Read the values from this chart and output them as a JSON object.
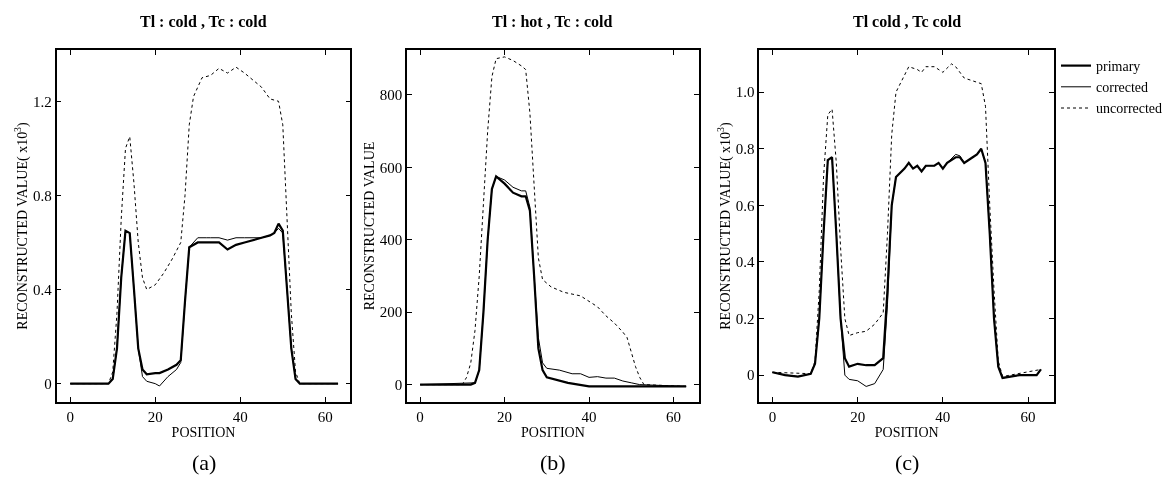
{
  "chart_data": [
    {
      "type": "line",
      "title": "Tl : cold , Tc : cold",
      "xlabel": "POSITION",
      "ylabel": "RECONSTRUCTED VALUE( x10$^{3}$)",
      "annotations": [
        "(a)"
      ],
      "xlim": [
        -3.2,
        65.9
      ],
      "ylim": [
        -0.078,
        1.418
      ],
      "xticks": [
        0,
        20,
        40,
        60
      ],
      "yticks": [
        0,
        0.4,
        0.8,
        1.2
      ],
      "series": [
        {
          "color": "#000000",
          "line_style": "solid",
          "x": [
            0,
            9,
            10,
            11,
            12,
            13,
            14,
            15,
            16,
            17,
            18,
            20,
            21,
            23,
            25,
            26,
            27,
            28,
            30,
            32,
            33,
            35,
            37,
            39,
            41,
            45,
            47,
            48,
            49,
            50,
            51,
            52,
            53,
            54,
            63
          ],
          "values": [
            0,
            0,
            0.02,
            0.15,
            0.45,
            0.65,
            0.64,
            0.4,
            0.15,
            0.06,
            0.04,
            0.045,
            0.045,
            0.06,
            0.08,
            0.1,
            0.35,
            0.58,
            0.6,
            0.6,
            0.6,
            0.6,
            0.57,
            0.59,
            0.6,
            0.62,
            0.63,
            0.64,
            0.68,
            0.65,
            0.4,
            0.15,
            0.02,
            0,
            0
          ]
        },
        {
          "color": "#000000",
          "line_style": "solid",
          "x": [
            0,
            9,
            10,
            11,
            12,
            13,
            14,
            15,
            16,
            17,
            18,
            20,
            21,
            23,
            25,
            26,
            27,
            28,
            30,
            32,
            33,
            35,
            37,
            39,
            41,
            45,
            47,
            48,
            49,
            50,
            51,
            52,
            53,
            54,
            63
          ],
          "values": [
            0,
            0,
            0.02,
            0.15,
            0.45,
            0.65,
            0.64,
            0.4,
            0.15,
            0.03,
            0.01,
            0.0,
            -0.01,
            0.03,
            0.06,
            0.09,
            0.35,
            0.58,
            0.62,
            0.62,
            0.62,
            0.62,
            0.61,
            0.62,
            0.62,
            0.62,
            0.63,
            0.64,
            0.66,
            0.64,
            0.4,
            0.15,
            0.02,
            0,
            0
          ]
        },
        {
          "color": "#000000",
          "line_style": "dotted",
          "x": [
            0,
            9,
            10,
            11,
            12,
            13,
            14,
            15,
            16,
            17,
            18,
            20,
            22,
            24,
            26,
            27,
            28,
            29,
            31,
            33,
            35,
            37,
            39,
            41,
            43,
            45,
            47,
            49,
            50,
            51,
            52,
            53,
            54,
            63
          ],
          "values": [
            0,
            0,
            0.05,
            0.3,
            0.7,
            1.0,
            1.05,
            0.85,
            0.6,
            0.45,
            0.4,
            0.42,
            0.47,
            0.53,
            0.6,
            0.8,
            1.1,
            1.22,
            1.3,
            1.31,
            1.34,
            1.32,
            1.345,
            1.32,
            1.29,
            1.26,
            1.21,
            1.2,
            1.1,
            0.7,
            0.3,
            0.05,
            0,
            0
          ]
        }
      ]
    },
    {
      "type": "line",
      "title": "Tl : hot , Tc : cold",
      "xlabel": "POSITION",
      "ylabel": "RECONSTRUCTED VALUE",
      "annotations": [
        "(b)"
      ],
      "xlim": [
        -3.1,
        66
      ],
      "ylim": [
        -48,
        924
      ],
      "xticks": [
        0,
        20,
        40,
        60
      ],
      "yticks": [
        0,
        200,
        400,
        600,
        800
      ],
      "series": [
        {
          "color": "#000000",
          "line_style": "solid",
          "x": [
            0,
            12,
            13,
            14,
            15,
            16,
            17,
            18,
            20,
            22,
            24,
            25,
            26,
            27,
            28,
            29,
            30,
            35,
            40,
            63
          ],
          "values": [
            0,
            0,
            5,
            40,
            200,
            400,
            540,
            575,
            555,
            530,
            520,
            520,
            480,
            300,
            100,
            40,
            20,
            5,
            -5,
            -5
          ]
        },
        {
          "color": "#000000",
          "line_style": "solid",
          "x": [
            0,
            13,
            14,
            15,
            16,
            17,
            18,
            20,
            22,
            24,
            25,
            26,
            27,
            28,
            29,
            30,
            33,
            36,
            38,
            40,
            42,
            44,
            46,
            48,
            50,
            52,
            63
          ],
          "values": [
            0,
            5,
            40,
            200,
            400,
            540,
            575,
            565,
            545,
            535,
            535,
            490,
            300,
            130,
            60,
            45,
            40,
            30,
            30,
            20,
            22,
            18,
            18,
            10,
            5,
            0,
            -5
          ]
        },
        {
          "color": "#000000",
          "line_style": "dotted",
          "x": [
            0,
            10,
            11,
            12,
            13,
            14,
            15,
            16,
            17,
            18,
            20,
            22,
            24,
            25,
            26,
            27,
            28,
            29,
            31,
            34,
            36,
            38,
            40,
            42,
            44,
            46,
            48,
            49,
            50,
            51,
            52,
            53,
            63
          ],
          "values": [
            0,
            0,
            20,
            60,
            150,
            300,
            500,
            700,
            850,
            900,
            905,
            895,
            880,
            870,
            750,
            550,
            350,
            290,
            270,
            255,
            250,
            245,
            230,
            215,
            190,
            170,
            145,
            130,
            90,
            50,
            20,
            0,
            -5
          ]
        }
      ]
    },
    {
      "type": "line",
      "title": "Tl cold , Tc cold",
      "xlabel": "POSITION",
      "ylabel": "RECONSTRUCTED VALUE( x10$^{3}$)",
      "annotations": [
        "(c)"
      ],
      "xlim": [
        -3.06,
        66.1
      ],
      "ylim": [
        -0.095,
        1.149
      ],
      "xticks": [
        0,
        20,
        40,
        60
      ],
      "yticks": [
        0,
        0.2,
        0.4,
        0.6,
        0.8,
        {
          "value": 1,
          "label": "1.0"
        }
      ],
      "legend": "top right",
      "series": [
        {
          "name": "primary",
          "color": "#000000",
          "line_style": "solid",
          "x": [
            0,
            3,
            6,
            9,
            10,
            11,
            12,
            13,
            14,
            15,
            16,
            17,
            18,
            20,
            22,
            24,
            26,
            27,
            28,
            29,
            31,
            32,
            33,
            34,
            35,
            36,
            38,
            39,
            40,
            41,
            43,
            44,
            45,
            47,
            48,
            49,
            50,
            51,
            52,
            53,
            54,
            58,
            62,
            63
          ],
          "values": [
            0.01,
            0,
            -0.005,
            0.005,
            0.04,
            0.2,
            0.5,
            0.76,
            0.77,
            0.5,
            0.2,
            0.06,
            0.03,
            0.04,
            0.035,
            0.035,
            0.06,
            0.3,
            0.6,
            0.7,
            0.73,
            0.75,
            0.73,
            0.74,
            0.72,
            0.74,
            0.74,
            0.75,
            0.73,
            0.75,
            0.77,
            0.77,
            0.75,
            0.77,
            0.78,
            0.8,
            0.75,
            0.5,
            0.2,
            0.03,
            -0.01,
            0,
            0,
            0.02
          ]
        },
        {
          "name": "corrected",
          "color": "#000000",
          "line_style": "solid",
          "x": [
            0,
            3,
            6,
            9,
            10,
            11,
            12,
            13,
            14,
            15,
            16,
            17,
            18,
            20,
            22,
            24,
            26,
            27,
            28,
            29,
            31,
            32,
            33,
            34,
            35,
            36,
            38,
            39,
            40,
            41,
            43,
            44,
            45,
            47,
            48,
            49,
            50,
            51,
            52,
            53,
            54,
            58,
            62,
            63
          ],
          "values": [
            0.01,
            0,
            -0.005,
            0.005,
            0.04,
            0.2,
            0.5,
            0.76,
            0.77,
            0.5,
            0.2,
            0.0,
            -0.015,
            -0.02,
            -0.04,
            -0.03,
            0.02,
            0.25,
            0.6,
            0.7,
            0.73,
            0.75,
            0.73,
            0.74,
            0.72,
            0.74,
            0.74,
            0.75,
            0.73,
            0.75,
            0.78,
            0.775,
            0.75,
            0.77,
            0.78,
            0.8,
            0.75,
            0.5,
            0.2,
            0.03,
            -0.01,
            0,
            0,
            0.02
          ]
        },
        {
          "name": "uncorrected",
          "color": "#000000",
          "line_style": "dotted",
          "x": [
            0,
            9,
            10,
            11,
            12,
            13,
            14,
            15,
            16,
            17,
            18,
            20,
            22,
            24,
            26,
            27,
            28,
            29,
            31,
            32,
            34,
            35,
            36,
            38,
            40,
            42,
            43,
            45,
            47,
            49,
            50,
            51,
            52,
            53,
            54,
            63
          ],
          "values": [
            0.01,
            0.005,
            0.05,
            0.3,
            0.7,
            0.92,
            0.94,
            0.75,
            0.45,
            0.2,
            0.14,
            0.15,
            0.155,
            0.18,
            0.22,
            0.5,
            0.85,
            1.0,
            1.06,
            1.09,
            1.08,
            1.07,
            1.09,
            1.09,
            1.07,
            1.1,
            1.09,
            1.05,
            1.04,
            1.03,
            0.95,
            0.6,
            0.3,
            0.05,
            -0.005,
            0.02
          ]
        }
      ]
    }
  ]
}
